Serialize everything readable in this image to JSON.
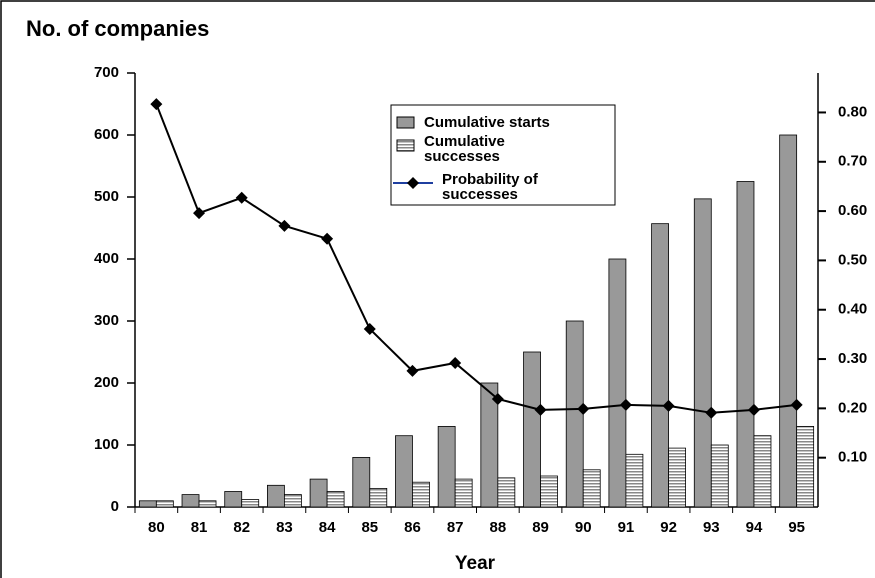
{
  "chart_data": {
    "type": "bar",
    "title": "No. of companies",
    "xlabel": "Year",
    "categories": [
      "80",
      "81",
      "82",
      "83",
      "84",
      "85",
      "86",
      "87",
      "88",
      "89",
      "90",
      "91",
      "92",
      "93",
      "94",
      "95"
    ],
    "series": [
      {
        "name": "Cumulative starts",
        "color": "#999999",
        "values": [
          10,
          20,
          25,
          35,
          45,
          80,
          115,
          130,
          200,
          250,
          300,
          400,
          457,
          497,
          525,
          600
        ]
      },
      {
        "name": "Cumulative successes",
        "color": "#888888",
        "values": [
          10,
          10,
          12,
          20,
          25,
          30,
          40,
          45,
          47,
          50,
          60,
          85,
          95,
          100,
          115,
          130
        ]
      },
      {
        "name": "Probability of successes",
        "color": "#000000",
        "axis": "y2",
        "type": "line",
        "values": [
          0.817,
          0.596,
          0.627,
          0.57,
          0.544,
          0.361,
          0.276,
          0.292,
          0.219,
          0.197,
          0.199,
          0.207,
          0.205,
          0.191,
          0.197,
          0.207
        ]
      }
    ],
    "ylim": [
      0,
      700
    ],
    "yticks": [
      0,
      100,
      200,
      300,
      400,
      500,
      600,
      700
    ],
    "y2lim": [
      0,
      0.88
    ],
    "y2ticks": [
      {
        "value": 0.1,
        "label": "0.10"
      },
      {
        "value": 0.2,
        "label": "0.20"
      },
      {
        "value": 0.3,
        "label": "0.30"
      },
      {
        "value": 0.4,
        "label": "0.40"
      },
      {
        "value": 0.5,
        "label": "0.50"
      },
      {
        "value": 0.6,
        "label": "0.60"
      },
      {
        "value": 0.7,
        "label": "0.70"
      },
      {
        "value": 0.8,
        "label": "0.80"
      }
    ],
    "legend": "top-right"
  }
}
